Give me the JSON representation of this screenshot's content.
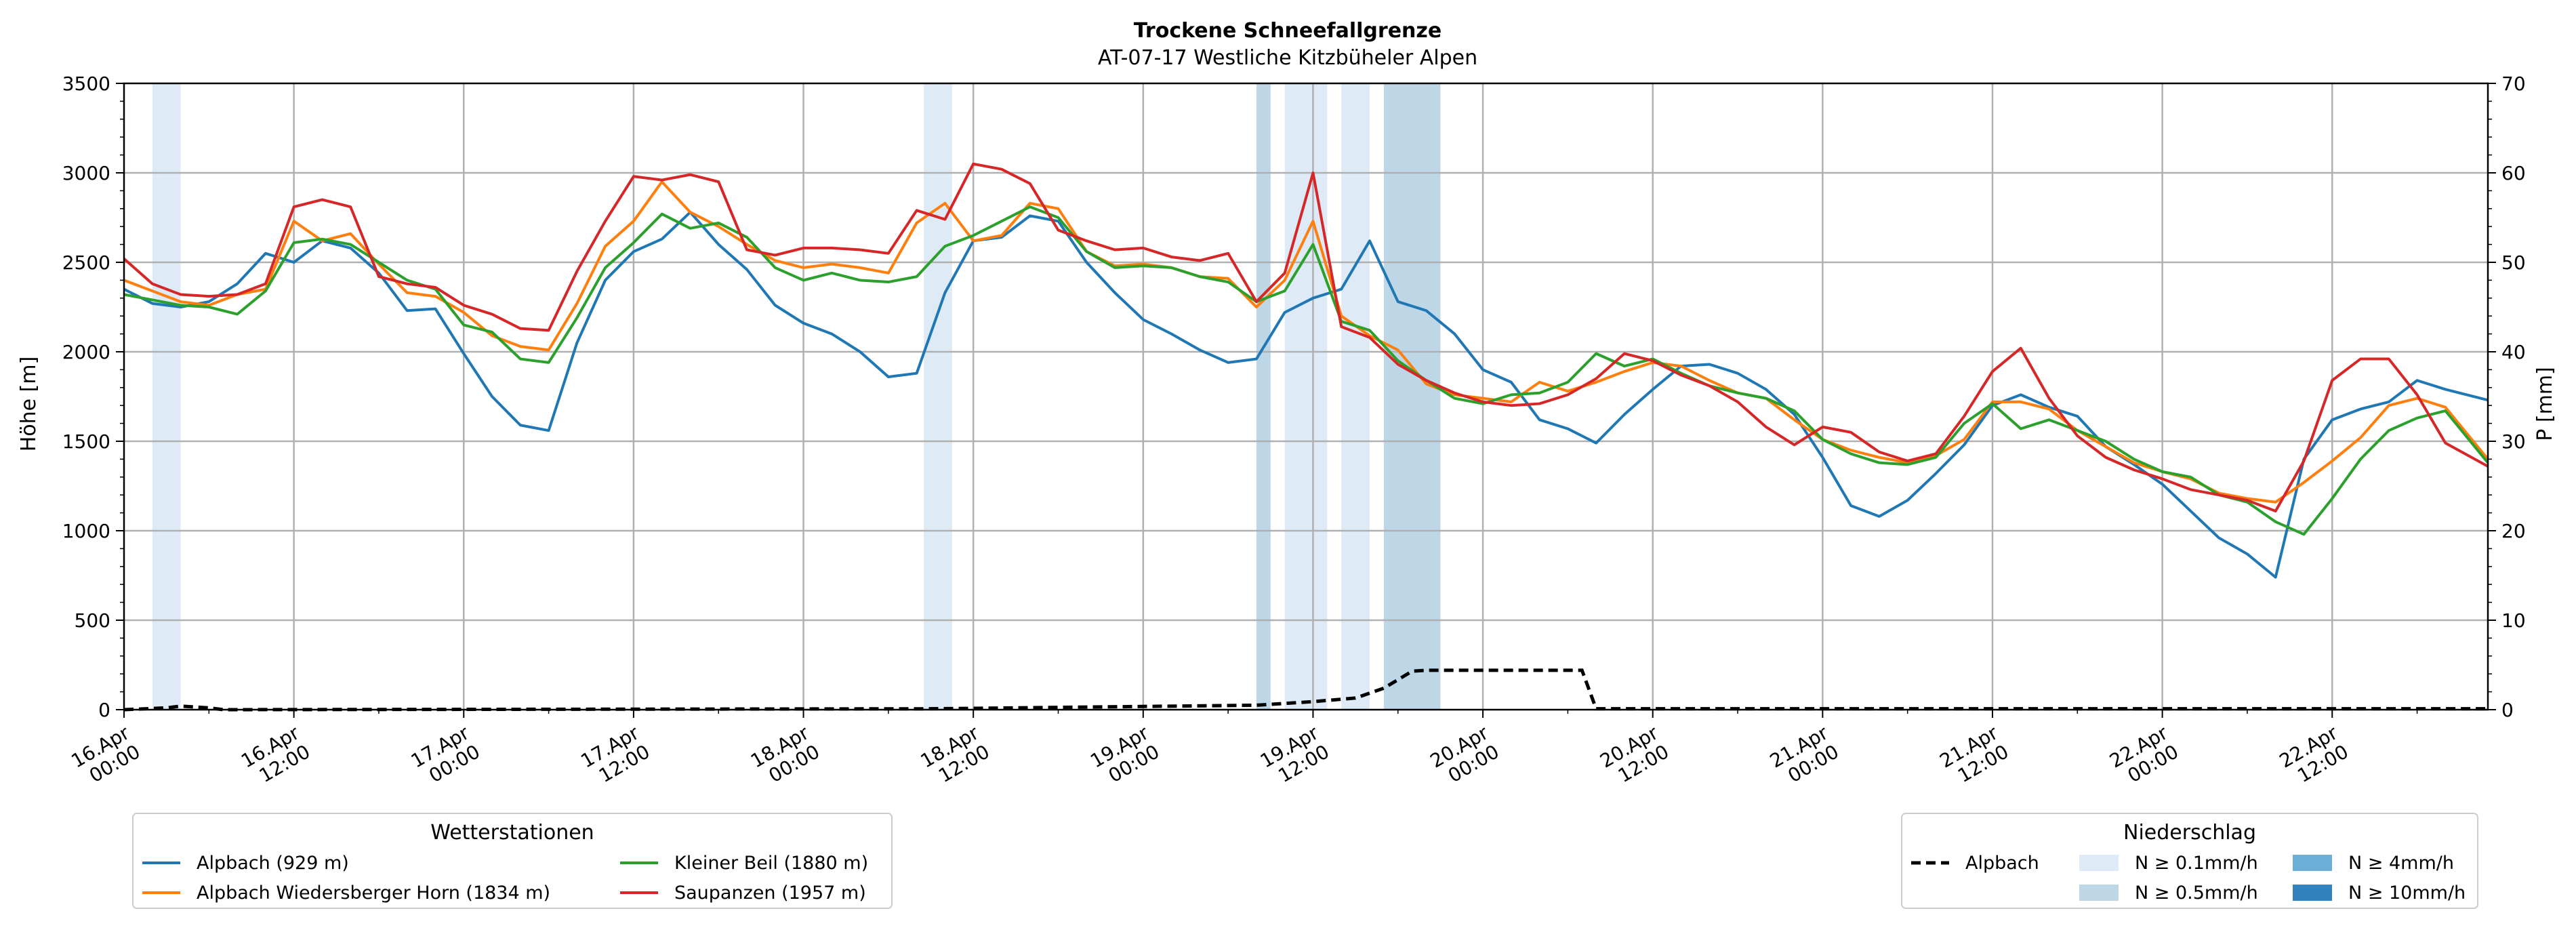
{
  "chart_data": {
    "type": "line",
    "title": "Trockene Schneefallgrenze",
    "subtitle": "AT-07-17 Westliche Kitzbüheler Alpen",
    "ylabel": "Höhe [m]",
    "y2label": "P [mm]",
    "ylim": [
      0,
      3500
    ],
    "y2lim": [
      0,
      70
    ],
    "yticks": [
      0,
      500,
      1000,
      1500,
      2000,
      2500,
      3000,
      3500
    ],
    "y2ticks": [
      0,
      10,
      20,
      30,
      40,
      50,
      60,
      70
    ],
    "x_unit": "hours since 16.Apr 00:00",
    "xlim": [
      0,
      167
    ],
    "xticks": [
      {
        "x": 0,
        "line1": "16.Apr",
        "line2": "00:00"
      },
      {
        "x": 12,
        "line1": "16.Apr",
        "line2": "12:00"
      },
      {
        "x": 24,
        "line1": "17.Apr",
        "line2": "00:00"
      },
      {
        "x": 36,
        "line1": "17.Apr",
        "line2": "12:00"
      },
      {
        "x": 48,
        "line1": "18.Apr",
        "line2": "00:00"
      },
      {
        "x": 60,
        "line1": "18.Apr",
        "line2": "12:00"
      },
      {
        "x": 72,
        "line1": "19.Apr",
        "line2": "00:00"
      },
      {
        "x": 84,
        "line1": "19.Apr",
        "line2": "12:00"
      },
      {
        "x": 96,
        "line1": "20.Apr",
        "line2": "00:00"
      },
      {
        "x": 108,
        "line1": "20.Apr",
        "line2": "12:00"
      },
      {
        "x": 120,
        "line1": "21.Apr",
        "line2": "00:00"
      },
      {
        "x": 132,
        "line1": "21.Apr",
        "line2": "12:00"
      },
      {
        "x": 144,
        "line1": "22.Apr",
        "line2": "00:00"
      },
      {
        "x": 156,
        "line1": "22.Apr",
        "line2": "12:00"
      }
    ],
    "grid": true,
    "precip_bands": [
      {
        "x0": 2,
        "x1": 4,
        "level": "N ≥ 0.1mm/h"
      },
      {
        "x0": 56.5,
        "x1": 58.5,
        "level": "N ≥ 0.1mm/h"
      },
      {
        "x0": 80,
        "x1": 81,
        "level": "N ≥ 0.5mm/h"
      },
      {
        "x0": 82,
        "x1": 85,
        "level": "N ≥ 0.1mm/h"
      },
      {
        "x0": 86,
        "x1": 88,
        "level": "N ≥ 0.1mm/h"
      },
      {
        "x0": 89,
        "x1": 93,
        "level": "N ≥ 0.5mm/h"
      }
    ],
    "precip_series": {
      "name": "Alpbach",
      "color": "#000000",
      "style": "dashed",
      "x": [
        0,
        3,
        4,
        6,
        7,
        57,
        80,
        84,
        87,
        89,
        91,
        92,
        96,
        100,
        103,
        104,
        167
      ],
      "values": [
        0,
        0.2,
        0.4,
        0.2,
        0,
        0.1,
        0.5,
        0.9,
        1.3,
        2.4,
        4.3,
        4.4,
        4.4,
        4.4,
        4.4,
        0.1,
        0.1
      ]
    },
    "series": [
      {
        "name": "Alpbach (929 m)",
        "color": "#1f77b4",
        "x": [
          0,
          2,
          4,
          6,
          8,
          10,
          12,
          14,
          16,
          18,
          20,
          22,
          24,
          26,
          28,
          30,
          32,
          34,
          36,
          38,
          40,
          42,
          44,
          46,
          48,
          50,
          52,
          54,
          56,
          58,
          60,
          62,
          64,
          66,
          68,
          70,
          72,
          74,
          76,
          78,
          80,
          82,
          84,
          86,
          88,
          90,
          92,
          94,
          96,
          98,
          100,
          102,
          104,
          106,
          108,
          110,
          112,
          114,
          116,
          118,
          120,
          122,
          124,
          126,
          128,
          130,
          132,
          134,
          136,
          138,
          140,
          142,
          144,
          146,
          148,
          150,
          152,
          154,
          156,
          158,
          160,
          162,
          164,
          167
        ],
        "values": [
          2350,
          2270,
          2250,
          2280,
          2380,
          2550,
          2500,
          2620,
          2580,
          2440,
          2230,
          2240,
          1990,
          1750,
          1590,
          1560,
          2050,
          2400,
          2560,
          2630,
          2780,
          2600,
          2460,
          2260,
          2160,
          2100,
          2000,
          1860,
          1880,
          2330,
          2620,
          2640,
          2760,
          2730,
          2500,
          2330,
          2180,
          2100,
          2010,
          1940,
          1960,
          2220,
          2300,
          2350,
          2620,
          2280,
          2230,
          2100,
          1900,
          1830,
          1620,
          1570,
          1490,
          1650,
          1790,
          1920,
          1930,
          1880,
          1790,
          1650,
          1410,
          1140,
          1080,
          1170,
          1320,
          1480,
          1700,
          1760,
          1690,
          1640,
          1470,
          1370,
          1260,
          1110,
          960,
          870,
          740,
          1400,
          1620,
          1680,
          1720,
          1840,
          1790,
          1730
        ]
      },
      {
        "name": "Alpbach Wiedersberger Horn (1834 m)",
        "color": "#ff7f0e",
        "x": [
          0,
          2,
          4,
          6,
          8,
          10,
          12,
          14,
          16,
          18,
          20,
          22,
          24,
          26,
          28,
          30,
          32,
          34,
          36,
          38,
          40,
          42,
          44,
          46,
          48,
          50,
          52,
          54,
          56,
          58,
          60,
          62,
          64,
          66,
          68,
          70,
          72,
          74,
          76,
          78,
          80,
          82,
          84,
          86,
          88,
          90,
          92,
          94,
          96,
          98,
          100,
          102,
          104,
          106,
          108,
          110,
          112,
          114,
          116,
          118,
          120,
          122,
          124,
          126,
          128,
          130,
          132,
          134,
          136,
          138,
          140,
          142,
          144,
          146,
          148,
          150,
          152,
          154,
          156,
          158,
          160,
          162,
          164,
          167
        ],
        "values": [
          2400,
          2340,
          2280,
          2260,
          2320,
          2350,
          2730,
          2620,
          2660,
          2490,
          2330,
          2310,
          2220,
          2090,
          2030,
          2010,
          2270,
          2590,
          2730,
          2950,
          2780,
          2700,
          2600,
          2510,
          2470,
          2490,
          2470,
          2440,
          2720,
          2830,
          2620,
          2650,
          2830,
          2800,
          2560,
          2480,
          2490,
          2470,
          2420,
          2410,
          2250,
          2400,
          2730,
          2200,
          2090,
          2010,
          1820,
          1760,
          1740,
          1720,
          1830,
          1780,
          1830,
          1890,
          1940,
          1920,
          1840,
          1770,
          1740,
          1620,
          1510,
          1450,
          1410,
          1380,
          1420,
          1510,
          1720,
          1720,
          1680,
          1560,
          1470,
          1380,
          1330,
          1290,
          1210,
          1180,
          1160,
          1270,
          1390,
          1520,
          1700,
          1740,
          1690,
          1400
        ]
      },
      {
        "name": "Kleiner Beil (1880 m)",
        "color": "#2ca02c",
        "x": [
          0,
          2,
          4,
          6,
          8,
          10,
          12,
          14,
          16,
          18,
          20,
          22,
          24,
          26,
          28,
          30,
          32,
          34,
          36,
          38,
          40,
          42,
          44,
          46,
          48,
          50,
          52,
          54,
          56,
          58,
          60,
          62,
          64,
          66,
          68,
          70,
          72,
          74,
          76,
          78,
          80,
          82,
          84,
          86,
          88,
          90,
          92,
          94,
          96,
          98,
          100,
          102,
          104,
          106,
          108,
          110,
          112,
          114,
          116,
          118,
          120,
          122,
          124,
          126,
          128,
          130,
          132,
          134,
          136,
          138,
          140,
          142,
          144,
          146,
          148,
          150,
          152,
          154,
          156,
          158,
          160,
          162,
          164,
          167
        ],
        "values": [
          2320,
          2290,
          2260,
          2250,
          2210,
          2340,
          2610,
          2630,
          2600,
          2500,
          2400,
          2350,
          2150,
          2110,
          1960,
          1940,
          2190,
          2470,
          2610,
          2770,
          2690,
          2720,
          2640,
          2470,
          2400,
          2440,
          2400,
          2390,
          2420,
          2590,
          2650,
          2730,
          2810,
          2750,
          2560,
          2470,
          2480,
          2470,
          2420,
          2390,
          2280,
          2340,
          2600,
          2170,
          2120,
          1950,
          1840,
          1740,
          1710,
          1760,
          1770,
          1830,
          1990,
          1920,
          1960,
          1880,
          1810,
          1770,
          1740,
          1670,
          1510,
          1430,
          1380,
          1370,
          1410,
          1600,
          1710,
          1570,
          1620,
          1560,
          1500,
          1400,
          1330,
          1300,
          1200,
          1160,
          1050,
          980,
          1180,
          1400,
          1560,
          1630,
          1670,
          1380
        ]
      },
      {
        "name": "Saupanzen (1957 m)",
        "color": "#d62728",
        "x": [
          0,
          2,
          4,
          6,
          8,
          10,
          12,
          14,
          16,
          18,
          20,
          22,
          24,
          26,
          28,
          30,
          32,
          34,
          36,
          38,
          40,
          42,
          44,
          46,
          48,
          50,
          52,
          54,
          56,
          58,
          60,
          62,
          64,
          66,
          68,
          70,
          72,
          74,
          76,
          78,
          80,
          82,
          84,
          86,
          88,
          90,
          92,
          94,
          96,
          98,
          100,
          102,
          104,
          106,
          108,
          110,
          112,
          114,
          116,
          118,
          120,
          122,
          124,
          126,
          128,
          130,
          132,
          134,
          136,
          138,
          140,
          142,
          144,
          146,
          148,
          150,
          152,
          154,
          156,
          158,
          160,
          162,
          164,
          167
        ],
        "values": [
          2520,
          2380,
          2320,
          2310,
          2320,
          2380,
          2810,
          2850,
          2810,
          2420,
          2380,
          2360,
          2260,
          2210,
          2130,
          2120,
          2450,
          2730,
          2980,
          2960,
          2990,
          2950,
          2570,
          2540,
          2580,
          2580,
          2570,
          2550,
          2790,
          2740,
          3050,
          3020,
          2940,
          2680,
          2620,
          2570,
          2580,
          2530,
          2510,
          2550,
          2280,
          2440,
          3000,
          2140,
          2080,
          1930,
          1840,
          1770,
          1720,
          1700,
          1710,
          1760,
          1850,
          1990,
          1950,
          1870,
          1810,
          1720,
          1580,
          1480,
          1580,
          1550,
          1440,
          1390,
          1430,
          1640,
          1890,
          2020,
          1740,
          1530,
          1410,
          1340,
          1290,
          1230,
          1200,
          1170,
          1110,
          1390,
          1840,
          1960,
          1960,
          1760,
          1490,
          1360
        ]
      }
    ],
    "legend_stations": {
      "title": "Wetterstationen",
      "position": "bottom-left",
      "items": [
        "Alpbach (929 m)",
        "Alpbach Wiedersberger Horn (1834 m)",
        "Kleiner Beil (1880 m)",
        "Saupanzen (1957 m)"
      ]
    },
    "legend_precip": {
      "title": "Niederschlag",
      "position": "bottom-right",
      "line_label": "Alpbach",
      "levels": [
        {
          "label": "N ≥ 0.1mm/h",
          "color": "#deebf7"
        },
        {
          "label": "N ≥ 0.5mm/h",
          "color": "#bdd7e7"
        },
        {
          "label": "N ≥ 4mm/h",
          "color": "#6baed6"
        },
        {
          "label": "N ≥ 10mm/h",
          "color": "#3182bd"
        }
      ]
    }
  }
}
